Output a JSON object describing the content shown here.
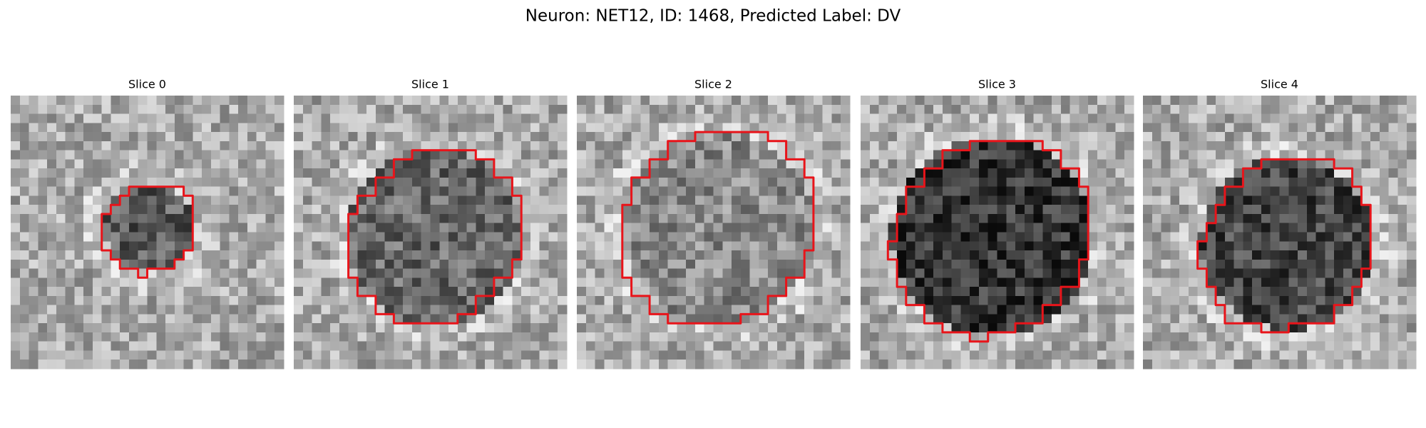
{
  "title": "Neuron: NET12, ID: 1468, Predicted Label: DV",
  "panels": [
    {
      "title": "Slice 0"
    },
    {
      "title": "Slice 1"
    },
    {
      "title": "Slice 2"
    },
    {
      "title": "Slice 3"
    },
    {
      "title": "Slice 4"
    }
  ]
}
